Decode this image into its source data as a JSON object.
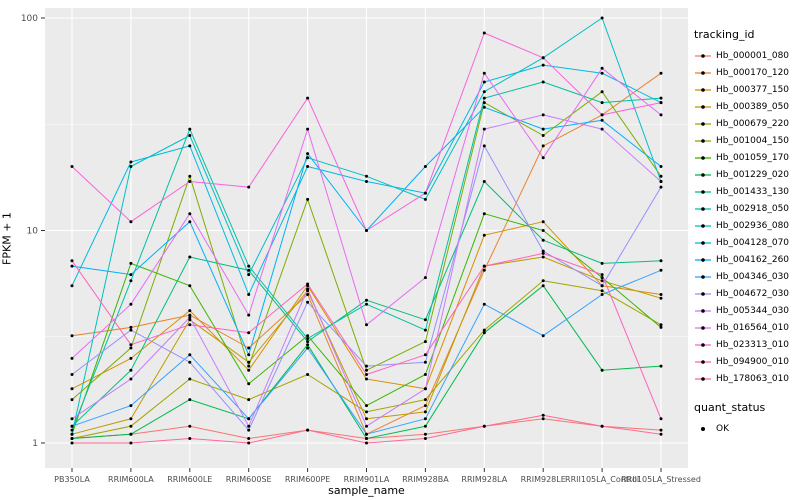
{
  "figure": {
    "y_axis_title": "FPKM + 1",
    "x_axis_title": "sample_name",
    "legend1_title": "tracking_id",
    "legend2_title": "quant_status",
    "quant_status_label": "OK"
  },
  "chart_data": {
    "type": "line",
    "title": "",
    "xlabel": "sample_name",
    "ylabel": "FPKM + 1",
    "y_scale": "log10",
    "ylim": [
      1,
      110
    ],
    "yticks": [
      1,
      10,
      100
    ],
    "y_minor_ticks": [
      3.1623,
      31.623
    ],
    "grid": true,
    "legend_position": "right",
    "panel_bg": "#EBEBEB",
    "grid_color": "#FFFFFF",
    "point_color": "#000000",
    "tick_text_color": "#4D4D4D",
    "categories": [
      "PB350LA",
      "RRIM600LA",
      "RRIM600LE",
      "RRIM600SE",
      "RRIM600PE",
      "RRIM901LA",
      "RRIM928BA",
      "RRIM928LA",
      "RRIM928LE",
      "RRII105LA_Control",
      "RRII105LA_Stressed"
    ],
    "series": [
      {
        "name": "Hb_000001_080",
        "color": "#F8766D",
        "values": [
          1.05,
          1.1,
          1.2,
          1.05,
          1.15,
          1.05,
          1.1,
          1.2,
          1.3,
          1.2,
          1.15
        ]
      },
      {
        "name": "Hb_000170_120",
        "color": "#EA8331",
        "values": [
          3.2,
          3.5,
          4.0,
          2.8,
          5.0,
          1.1,
          1.5,
          6.5,
          25,
          35,
          55
        ]
      },
      {
        "name": "Hb_000377_150",
        "color": "#D89000",
        "values": [
          1.8,
          2.5,
          4.2,
          2.2,
          5.5,
          2.0,
          1.8,
          9.5,
          11,
          5.5,
          5.0
        ]
      },
      {
        "name": "Hb_000389_050",
        "color": "#C09B00",
        "values": [
          1.1,
          1.3,
          3.8,
          2.4,
          5.2,
          1.3,
          1.4,
          6.8,
          7.5,
          5.8,
          4.8
        ]
      },
      {
        "name": "Hb_000679_220",
        "color": "#A3A500",
        "values": [
          1.05,
          1.2,
          2.0,
          1.6,
          2.1,
          1.4,
          1.6,
          3.4,
          5.8,
          5.2,
          3.6
        ]
      },
      {
        "name": "Hb_001004_150",
        "color": "#7CAE00",
        "values": [
          1.6,
          2.8,
          18,
          2.3,
          14,
          2.2,
          3.0,
          40,
          28,
          45,
          18
        ]
      },
      {
        "name": "Hb_001059_170",
        "color": "#39B600",
        "values": [
          1.1,
          7.0,
          5.5,
          1.9,
          3.2,
          1.5,
          2.1,
          12,
          10,
          6.0,
          3.5
        ]
      },
      {
        "name": "Hb_001229_020",
        "color": "#00BB4E",
        "values": [
          1.05,
          1.1,
          1.6,
          1.3,
          2.9,
          1.05,
          1.2,
          3.3,
          5.5,
          2.2,
          2.3
        ]
      },
      {
        "name": "Hb_001433_130",
        "color": "#00BF7D",
        "values": [
          1.2,
          2.2,
          7.5,
          6.5,
          3.0,
          4.7,
          3.8,
          17,
          9.0,
          7.0,
          7.2
        ]
      },
      {
        "name": "Hb_002918_050",
        "color": "#00C1A3",
        "values": [
          1.15,
          5.8,
          30,
          6.8,
          3.1,
          4.5,
          3.4,
          42,
          50,
          40,
          42
        ]
      },
      {
        "name": "Hb_002936_080",
        "color": "#00BFC4",
        "values": [
          1.1,
          20,
          28,
          6.2,
          22,
          18,
          14,
          45,
          65,
          100,
          17
        ]
      },
      {
        "name": "Hb_004128_070",
        "color": "#00BAE0",
        "values": [
          5.5,
          21,
          25,
          5.0,
          20,
          17,
          15,
          50,
          60,
          55,
          40
        ]
      },
      {
        "name": "Hb_004162_260",
        "color": "#00B0F6",
        "values": [
          6.8,
          6.2,
          11,
          2.6,
          23,
          10,
          20,
          38,
          30,
          33,
          20
        ]
      },
      {
        "name": "Hb_004346_030",
        "color": "#35A2FF",
        "values": [
          1.2,
          1.5,
          2.6,
          1.3,
          2.8,
          1.1,
          1.3,
          4.5,
          3.2,
          5.0,
          6.5
        ]
      },
      {
        "name": "Hb_004672_030",
        "color": "#9590FF",
        "values": [
          2.1,
          3.4,
          2.4,
          1.15,
          4.6,
          2.3,
          2.4,
          25,
          8.0,
          5.5,
          16
        ]
      },
      {
        "name": "Hb_005344_030",
        "color": "#C77CFF",
        "values": [
          1.3,
          2.0,
          3.9,
          1.2,
          5.3,
          1.2,
          1.8,
          30,
          35,
          30,
          17
        ]
      },
      {
        "name": "Hb_016564_010",
        "color": "#E76BF3",
        "values": [
          2.5,
          4.5,
          12,
          4.0,
          30,
          3.6,
          6.0,
          55,
          22,
          58,
          35
        ]
      },
      {
        "name": "Hb_023313_010",
        "color": "#FA62DB",
        "values": [
          20,
          11,
          17,
          16,
          42,
          10,
          15,
          85,
          65,
          35,
          40
        ]
      },
      {
        "name": "Hb_094900_010",
        "color": "#FF62BC",
        "values": [
          7.2,
          2.9,
          3.6,
          3.3,
          5.6,
          2.1,
          2.6,
          6.8,
          7.8,
          6.2,
          1.3
        ]
      },
      {
        "name": "Hb_178063_010",
        "color": "#FF6A98",
        "values": [
          1.0,
          1.0,
          1.05,
          1.0,
          1.15,
          1.0,
          1.05,
          1.2,
          1.35,
          1.2,
          1.1
        ]
      }
    ]
  }
}
